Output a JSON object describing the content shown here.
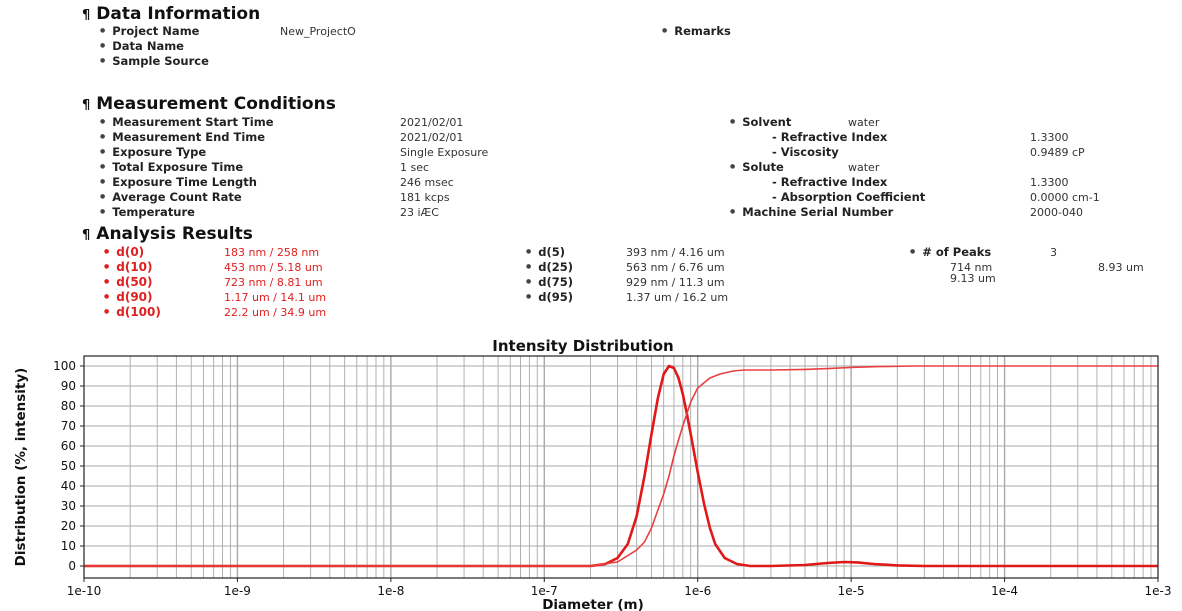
{
  "data_information": {
    "header": "Data Information",
    "project_name_label": "Project Name",
    "project_name_value": "New_ProjectO",
    "data_name_label": "Data Name",
    "sample_source_label": "Sample Source",
    "remarks_label": "Remarks"
  },
  "measurement_conditions": {
    "header": "Measurement Conditions",
    "rows": [
      {
        "label": "Measurement Start Time",
        "value": "2021/02/01"
      },
      {
        "label": "Measurement End Time",
        "value": "2021/02/01"
      },
      {
        "label": "Exposure Type",
        "value": "Single Exposure"
      },
      {
        "label": "Total Exposure Time",
        "value": "1 sec"
      },
      {
        "label": "Exposure Time Length",
        "value": "246 msec"
      },
      {
        "label": "Average Count Rate",
        "value": "181 kcps"
      },
      {
        "label": "Temperature",
        "value": "23 iÆC"
      }
    ],
    "solvent_label": "Solvent",
    "solvent_value": "water",
    "solvent_ri_label": "- Refractive Index",
    "solvent_ri_value": "1.3300",
    "viscosity_label": "- Viscosity",
    "viscosity_value": "0.9489 cP",
    "solute_label": "Solute",
    "solute_value": "water",
    "solute_ri_label": "- Refractive Index",
    "solute_ri_value": "1.3300",
    "absorption_label": "- Absorption Coefficient",
    "absorption_value": "0.0000 cm-1",
    "serial_label": "Machine Serial Number",
    "serial_value": "2000-040"
  },
  "analysis_results": {
    "header": "Analysis Results",
    "col1": [
      {
        "label": "d(0)",
        "value": "183 nm / 258 nm"
      },
      {
        "label": "d(10)",
        "value": "453 nm / 5.18 um"
      },
      {
        "label": "d(50)",
        "value": "723 nm / 8.81 um"
      },
      {
        "label": "d(90)",
        "value": "1.17 um / 14.1 um"
      },
      {
        "label": "d(100)",
        "value": "22.2 um / 34.9 um"
      }
    ],
    "col2": [
      {
        "label": "d(5)",
        "value": "393 nm / 4.16 um"
      },
      {
        "label": "d(25)",
        "value": "563 nm / 6.76 um"
      },
      {
        "label": "d(75)",
        "value": "929 nm / 11.3 um"
      },
      {
        "label": "d(95)",
        "value": "1.37 um / 16.2 um"
      }
    ],
    "peaks_label": "# of Peaks",
    "peaks_value": "3",
    "peak_values": [
      "714 nm",
      "8.93 um",
      "9.13 um"
    ]
  },
  "chart_data": {
    "type": "line",
    "title": "Intensity Distribution",
    "xlabel": "Diameter (m)",
    "ylabel": "Distribution (%, intensity)",
    "x_scale": "log",
    "xlim": [
      1e-10,
      0.001
    ],
    "ylim": [
      0,
      100
    ],
    "x_tick_labels": [
      "1e-10",
      "1e-9",
      "1e-8",
      "1e-7",
      "1e-6",
      "1e-5",
      "1e-4",
      "1e-3"
    ],
    "y_ticks": [
      0,
      10,
      20,
      30,
      40,
      50,
      60,
      70,
      80,
      90,
      100
    ],
    "grid": true,
    "colors": {
      "distribution": "#e01818",
      "cumulative": "#e84040",
      "grid": "#a9a9a9"
    },
    "series": [
      {
        "x": [
          1e-10,
          2e-07,
          2.5e-07,
          3e-07,
          3.5e-07,
          4e-07,
          4.5e-07,
          5e-07,
          5.5e-07,
          6e-07,
          6.5e-07,
          7e-07,
          7.5e-07,
          8e-07,
          8.5e-07,
          9e-07,
          1e-06,
          1.1e-06,
          1.2e-06,
          1.3e-06,
          1.5e-06,
          1.8e-06,
          2.2e-06,
          3e-06,
          5e-06,
          7e-06,
          9e-06,
          1.1e-05,
          1.4e-05,
          2e-05,
          3e-05,
          0.001
        ],
        "y": [
          0,
          0,
          1,
          4,
          11,
          25,
          45,
          66,
          84,
          96,
          100,
          99,
          94,
          86,
          76,
          66,
          47,
          31,
          19,
          11,
          4,
          1,
          0,
          0,
          0.5,
          1.5,
          2,
          1.8,
          1,
          0.3,
          0,
          0
        ]
      },
      {
        "x": [
          1e-10,
          2e-07,
          3e-07,
          4e-07,
          4.5e-07,
          5e-07,
          5.5e-07,
          6e-07,
          6.5e-07,
          7e-07,
          7.5e-07,
          8e-07,
          9e-07,
          1e-06,
          1.2e-06,
          1.4e-06,
          1.7e-06,
          2e-06,
          3e-06,
          5e-06,
          7e-06,
          1e-05,
          1.5e-05,
          2.5e-05,
          0.001
        ],
        "y": [
          0,
          0,
          2,
          8,
          12,
          19,
          28,
          36,
          45,
          55,
          63,
          70,
          82,
          89,
          94,
          96,
          97.5,
          98,
          98,
          98.3,
          98.7,
          99.3,
          99.7,
          100,
          100
        ]
      }
    ]
  }
}
